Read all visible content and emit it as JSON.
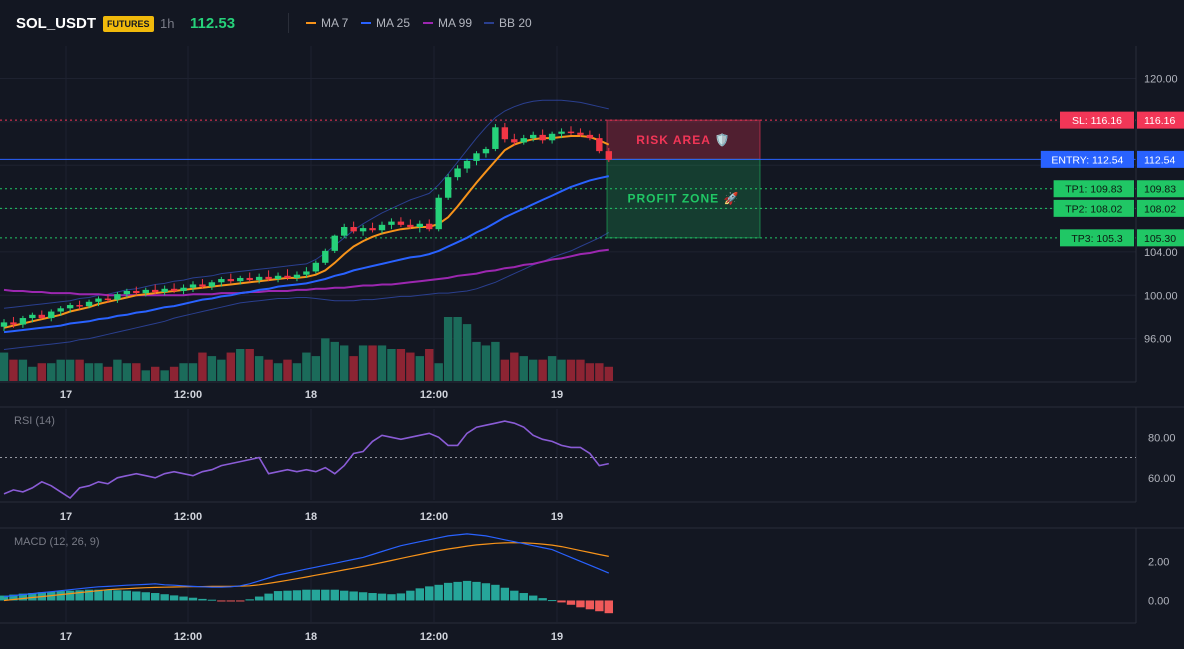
{
  "header": {
    "symbol": "SOL_USDT",
    "badge": "FUTURES",
    "timeframe": "1h",
    "last_price": "112.53",
    "legend": [
      {
        "label": "MA 7",
        "color": "#f7931a"
      },
      {
        "label": "MA 25",
        "color": "#2962ff"
      },
      {
        "label": "MA 99",
        "color": "#9c27b0"
      },
      {
        "label": "BB 20",
        "color": "#2a3f8f"
      }
    ]
  },
  "colors": {
    "up": "#26d17a",
    "down": "#f23645",
    "volume_up": "#1b6b5a",
    "volume_down": "#8c2433",
    "sl": "#f23657",
    "entry": "#2962ff",
    "tp": "#20c765",
    "rsi": "#8a5cd6",
    "macd": "#2962ff",
    "signal": "#f7931a"
  },
  "main": {
    "ymin": 92.0,
    "ymax": 123.0,
    "y_ticks": [
      "120.00",
      "104.00",
      "100.00",
      "96.00"
    ],
    "x_ticks": [
      "17",
      "12:00",
      "18",
      "12:00",
      "19"
    ],
    "levels": [
      {
        "kind": "sl",
        "price": 116.16,
        "tag": "SL: 116.16",
        "axis": "116.16"
      },
      {
        "kind": "entry",
        "price": 112.54,
        "tag": "ENTRY: 112.54",
        "axis": "112.54"
      },
      {
        "kind": "tp",
        "price": 109.83,
        "tag": "TP1: 109.83",
        "axis": "109.83"
      },
      {
        "kind": "tp",
        "price": 108.02,
        "tag": "TP2: 108.02",
        "axis": "108.02"
      },
      {
        "kind": "tp",
        "price": 105.3,
        "tag": "TP3: 105.3",
        "axis": "105.30"
      }
    ],
    "zones": {
      "risk_label": "RISK AREA 🛡️",
      "profit_label": "PROFIT ZONE 🚀"
    }
  },
  "rsi": {
    "label": "RSI (14)",
    "y_ticks": [
      "80.00",
      "60.00"
    ],
    "x_ticks": [
      "17",
      "12:00",
      "18",
      "12:00",
      "19"
    ]
  },
  "macd": {
    "label": "MACD (12, 26, 9)",
    "y_ticks": [
      "2.00",
      "0.00"
    ],
    "x_ticks": [
      "17",
      "12:00",
      "18",
      "12:00",
      "19"
    ]
  },
  "chart_data": {
    "type": "candlestick",
    "candles_ohlc": [
      [
        97.1,
        97.8,
        96.7,
        97.5
      ],
      [
        97.5,
        98.0,
        97.0,
        97.3
      ],
      [
        97.3,
        98.1,
        97.0,
        97.9
      ],
      [
        97.9,
        98.4,
        97.5,
        98.2
      ],
      [
        98.2,
        98.6,
        97.8,
        97.9
      ],
      [
        97.9,
        98.7,
        97.6,
        98.5
      ],
      [
        98.5,
        99.0,
        98.1,
        98.8
      ],
      [
        98.8,
        99.3,
        98.4,
        99.1
      ],
      [
        99.1,
        99.5,
        98.7,
        99.0
      ],
      [
        99.0,
        99.6,
        98.8,
        99.4
      ],
      [
        99.4,
        99.9,
        99.0,
        99.7
      ],
      [
        99.7,
        100.1,
        99.3,
        99.6
      ],
      [
        99.6,
        100.3,
        99.3,
        100.1
      ],
      [
        100.1,
        100.6,
        99.8,
        100.4
      ],
      [
        100.4,
        100.8,
        100.0,
        100.2
      ],
      [
        100.2,
        100.7,
        99.9,
        100.5
      ],
      [
        100.5,
        101.0,
        100.1,
        100.3
      ],
      [
        100.3,
        100.9,
        100.0,
        100.6
      ],
      [
        100.6,
        101.1,
        100.2,
        100.4
      ],
      [
        100.4,
        101.0,
        100.1,
        100.7
      ],
      [
        100.7,
        101.3,
        100.3,
        101.0
      ],
      [
        101.0,
        101.5,
        100.6,
        100.8
      ],
      [
        100.8,
        101.4,
        100.5,
        101.2
      ],
      [
        101.2,
        101.7,
        100.8,
        101.5
      ],
      [
        101.5,
        102.0,
        101.1,
        101.3
      ],
      [
        101.3,
        101.8,
        101.0,
        101.6
      ],
      [
        101.6,
        102.1,
        101.2,
        101.4
      ],
      [
        101.4,
        102.0,
        101.1,
        101.7
      ],
      [
        101.7,
        102.3,
        101.3,
        101.5
      ],
      [
        101.5,
        102.1,
        101.2,
        101.8
      ],
      [
        101.8,
        102.4,
        101.4,
        101.6
      ],
      [
        101.6,
        102.2,
        101.3,
        101.9
      ],
      [
        101.9,
        102.6,
        101.6,
        102.2
      ],
      [
        102.2,
        103.2,
        102.0,
        103.0
      ],
      [
        103.0,
        104.3,
        102.8,
        104.1
      ],
      [
        104.1,
        105.6,
        103.9,
        105.5
      ],
      [
        105.5,
        106.6,
        105.3,
        106.3
      ],
      [
        106.3,
        106.8,
        105.7,
        105.9
      ],
      [
        105.9,
        106.5,
        105.5,
        106.2
      ],
      [
        106.2,
        106.7,
        105.8,
        106.0
      ],
      [
        106.0,
        106.8,
        105.7,
        106.5
      ],
      [
        106.5,
        107.1,
        106.1,
        106.8
      ],
      [
        106.8,
        107.2,
        106.3,
        106.5
      ],
      [
        106.5,
        107.0,
        106.1,
        106.3
      ],
      [
        106.3,
        106.9,
        105.8,
        106.6
      ],
      [
        106.6,
        107.0,
        105.9,
        106.1
      ],
      [
        106.1,
        109.3,
        105.9,
        109.0
      ],
      [
        109.0,
        111.2,
        108.8,
        110.9
      ],
      [
        110.9,
        112.0,
        110.6,
        111.7
      ],
      [
        111.7,
        112.6,
        111.3,
        112.4
      ],
      [
        112.4,
        113.3,
        112.0,
        113.1
      ],
      [
        113.1,
        113.7,
        112.7,
        113.5
      ],
      [
        113.5,
        115.8,
        113.3,
        115.5
      ],
      [
        115.5,
        115.9,
        114.1,
        114.4
      ],
      [
        114.4,
        114.9,
        113.8,
        114.1
      ],
      [
        114.1,
        114.8,
        113.9,
        114.5
      ],
      [
        114.5,
        115.1,
        114.2,
        114.8
      ],
      [
        114.8,
        115.3,
        114.0,
        114.3
      ],
      [
        114.3,
        115.1,
        114.0,
        114.9
      ],
      [
        114.9,
        115.4,
        114.5,
        115.1
      ],
      [
        115.1,
        115.6,
        114.8,
        115.0
      ],
      [
        115.0,
        115.4,
        114.6,
        114.8
      ],
      [
        114.8,
        115.2,
        114.3,
        114.5
      ],
      [
        114.5,
        114.9,
        113.1,
        113.3
      ],
      [
        113.3,
        113.6,
        112.3,
        112.5
      ]
    ],
    "volume": [
      8,
      6,
      6,
      4,
      5,
      5,
      6,
      6,
      6,
      5,
      5,
      4,
      6,
      5,
      5,
      3,
      4,
      3,
      4,
      5,
      5,
      8,
      7,
      6,
      8,
      9,
      9,
      7,
      6,
      5,
      6,
      5,
      8,
      7,
      12,
      11,
      10,
      7,
      10,
      10,
      10,
      9,
      9,
      8,
      7,
      9,
      5,
      18,
      18,
      16,
      11,
      10,
      11,
      6,
      8,
      7,
      6,
      6,
      7,
      6,
      6,
      6,
      5,
      5,
      4
    ],
    "ma7": [
      97.0,
      97.2,
      97.4,
      97.6,
      97.8,
      98.0,
      98.2,
      98.5,
      98.7,
      98.9,
      99.2,
      99.4,
      99.6,
      99.8,
      100.0,
      100.1,
      100.2,
      100.3,
      100.4,
      100.5,
      100.6,
      100.7,
      100.8,
      100.9,
      101.0,
      101.1,
      101.2,
      101.3,
      101.4,
      101.5,
      101.6,
      101.6,
      101.7,
      101.9,
      102.3,
      103.0,
      103.8,
      104.5,
      105.0,
      105.4,
      105.7,
      105.9,
      106.1,
      106.2,
      106.3,
      106.3,
      106.6,
      107.2,
      108.2,
      109.3,
      110.4,
      111.4,
      112.4,
      113.4,
      113.9,
      114.2,
      114.4,
      114.5,
      114.5,
      114.6,
      114.7,
      114.7,
      114.6,
      114.3,
      113.9
    ],
    "ma25": [
      96.6,
      96.7,
      96.8,
      96.9,
      97.0,
      97.1,
      97.2,
      97.4,
      97.5,
      97.6,
      97.8,
      97.9,
      98.1,
      98.2,
      98.4,
      98.5,
      98.7,
      98.9,
      99.0,
      99.2,
      99.4,
      99.6,
      99.7,
      99.9,
      100.0,
      100.2,
      100.3,
      100.5,
      100.6,
      100.8,
      100.9,
      101.0,
      101.1,
      101.3,
      101.5,
      101.8,
      102.0,
      102.3,
      102.5,
      102.7,
      102.9,
      103.1,
      103.3,
      103.5,
      103.6,
      103.8,
      104.1,
      104.5,
      104.9,
      105.3,
      105.8,
      106.2,
      106.7,
      107.2,
      107.6,
      108.0,
      108.4,
      108.8,
      109.2,
      109.6,
      110.0,
      110.3,
      110.6,
      110.8,
      111.0
    ],
    "ma99": [
      100.5,
      100.4,
      100.4,
      100.3,
      100.3,
      100.2,
      100.2,
      100.2,
      100.1,
      100.1,
      100.1,
      100.0,
      100.0,
      100.0,
      100.0,
      100.0,
      100.0,
      100.0,
      100.0,
      100.0,
      100.1,
      100.1,
      100.1,
      100.2,
      100.2,
      100.2,
      100.3,
      100.3,
      100.4,
      100.4,
      100.4,
      100.5,
      100.5,
      100.6,
      100.6,
      100.7,
      100.7,
      100.8,
      100.9,
      100.9,
      101.0,
      101.0,
      101.1,
      101.2,
      101.3,
      101.4,
      101.5,
      101.6,
      101.8,
      101.9,
      102.0,
      102.2,
      102.3,
      102.5,
      102.6,
      102.8,
      102.9,
      103.1,
      103.3,
      103.4,
      103.6,
      103.8,
      103.9,
      104.1,
      104.2
    ],
    "bb_upper": [
      98.8,
      98.9,
      99.0,
      99.1,
      99.2,
      99.3,
      99.4,
      99.5,
      99.7,
      99.8,
      100.0,
      100.1,
      100.3,
      100.5,
      100.6,
      100.8,
      101.0,
      101.1,
      101.3,
      101.4,
      101.6,
      101.7,
      101.8,
      102.0,
      102.1,
      102.2,
      102.3,
      102.4,
      102.5,
      102.6,
      102.7,
      102.8,
      102.9,
      103.3,
      103.9,
      104.6,
      105.3,
      106.0,
      106.6,
      107.1,
      107.6,
      108.0,
      108.4,
      108.8,
      109.1,
      109.4,
      110.2,
      111.2,
      112.3,
      113.4,
      114.5,
      115.5,
      116.4,
      117.0,
      117.4,
      117.7,
      117.9,
      118.0,
      118.0,
      118.0,
      117.9,
      117.8,
      117.6,
      117.4,
      117.2
    ],
    "bb_lower": [
      95.0,
      95.1,
      95.2,
      95.3,
      95.4,
      95.5,
      95.6,
      95.7,
      95.9,
      96.0,
      96.2,
      96.4,
      96.6,
      96.8,
      97.0,
      97.2,
      97.4,
      97.6,
      97.9,
      98.1,
      98.3,
      98.5,
      98.7,
      98.9,
      99.1,
      99.3,
      99.4,
      99.5,
      99.6,
      99.7,
      99.7,
      99.8,
      99.8,
      99.7,
      99.6,
      99.5,
      99.5,
      99.5,
      99.6,
      99.6,
      99.7,
      99.8,
      99.9,
      99.9,
      100.0,
      100.1,
      100.2,
      100.2,
      100.3,
      100.4,
      100.6,
      100.9,
      101.2,
      101.6,
      102.0,
      102.4,
      102.8,
      103.1,
      103.5,
      103.8,
      104.1,
      104.5,
      104.9,
      105.3,
      105.8
    ],
    "rsi_ymin": 49.0,
    "rsi_ymax": 94.0,
    "rsi_overbought": 70,
    "rsi": [
      52,
      54,
      53,
      55,
      58,
      56,
      53,
      50,
      55,
      56,
      58,
      57,
      60,
      61,
      62,
      61,
      60,
      62,
      63,
      62,
      61,
      63,
      64,
      66,
      67,
      68,
      69,
      70,
      62,
      63,
      64,
      63,
      64,
      63,
      65,
      62,
      66,
      72,
      73,
      78,
      81,
      80,
      79,
      80,
      81,
      82,
      80,
      76,
      76,
      82,
      85,
      86,
      87,
      88,
      87,
      85,
      81,
      79,
      78,
      76,
      75,
      75,
      72,
      66,
      67
    ],
    "macd_ymin": -1.1,
    "macd_ymax": 3.6,
    "macd": [
      0.2,
      0.25,
      0.3,
      0.35,
      0.4,
      0.45,
      0.5,
      0.55,
      0.6,
      0.65,
      0.7,
      0.72,
      0.75,
      0.78,
      0.8,
      0.82,
      0.85,
      0.8,
      0.78,
      0.75,
      0.72,
      0.7,
      0.68,
      0.68,
      0.7,
      0.75,
      0.85,
      1.0,
      1.15,
      1.3,
      1.4,
      1.5,
      1.6,
      1.7,
      1.8,
      1.9,
      2.0,
      2.1,
      2.2,
      2.35,
      2.5,
      2.65,
      2.8,
      2.9,
      3.0,
      3.1,
      3.2,
      3.3,
      3.35,
      3.4,
      3.35,
      3.3,
      3.2,
      3.1,
      3.0,
      2.9,
      2.8,
      2.7,
      2.6,
      2.4,
      2.2,
      2.0,
      1.8,
      1.6,
      1.4
    ],
    "signal": [
      0.0,
      0.05,
      0.1,
      0.15,
      0.2,
      0.25,
      0.3,
      0.35,
      0.4,
      0.45,
      0.5,
      0.55,
      0.58,
      0.6,
      0.63,
      0.65,
      0.67,
      0.68,
      0.69,
      0.7,
      0.71,
      0.71,
      0.72,
      0.72,
      0.72,
      0.73,
      0.75,
      0.8,
      0.87,
      0.95,
      1.03,
      1.11,
      1.2,
      1.29,
      1.38,
      1.47,
      1.56,
      1.65,
      1.74,
      1.84,
      1.94,
      2.04,
      2.15,
      2.25,
      2.35,
      2.45,
      2.55,
      2.63,
      2.7,
      2.78,
      2.84,
      2.88,
      2.92,
      2.94,
      2.95,
      2.94,
      2.92,
      2.88,
      2.83,
      2.75,
      2.65,
      2.55,
      2.45,
      2.35,
      2.25
    ],
    "macd_hist": [
      0.25,
      0.3,
      0.35,
      0.38,
      0.42,
      0.45,
      0.48,
      0.5,
      0.52,
      0.55,
      0.55,
      0.56,
      0.52,
      0.5,
      0.46,
      0.42,
      0.38,
      0.32,
      0.26,
      0.2,
      0.14,
      0.08,
      0.04,
      -0.02,
      -0.04,
      -0.02,
      0.06,
      0.2,
      0.35,
      0.48,
      0.5,
      0.52,
      0.55,
      0.55,
      0.55,
      0.55,
      0.5,
      0.46,
      0.42,
      0.38,
      0.35,
      0.32,
      0.36,
      0.5,
      0.62,
      0.72,
      0.8,
      0.9,
      0.95,
      1.0,
      0.95,
      0.88,
      0.8,
      0.65,
      0.5,
      0.38,
      0.25,
      0.12,
      0.02,
      -0.1,
      -0.22,
      -0.35,
      -0.45,
      -0.55,
      -0.65
    ]
  }
}
